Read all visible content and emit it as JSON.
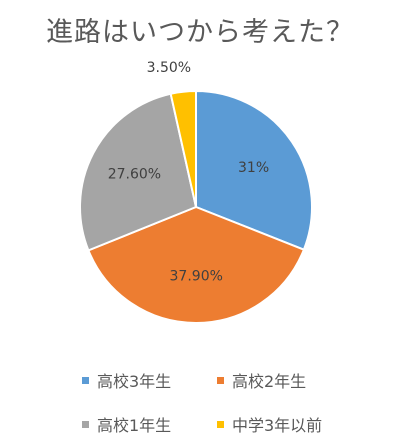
{
  "chart_data": {
    "type": "pie",
    "title": "進路はいつから考えた？",
    "slices": [
      {
        "name": "高校3年生",
        "value": 31.0,
        "label": "31%",
        "color": "#5B9BD5"
      },
      {
        "name": "高校2年生",
        "value": 37.9,
        "label": "37.90%",
        "color": "#ED7D31"
      },
      {
        "name": "高校1年生",
        "value": 27.6,
        "label": "27.60%",
        "color": "#A5A5A5"
      },
      {
        "name": "中学3年以前",
        "value": 3.5,
        "label": "3.50%",
        "color": "#FFC000"
      }
    ],
    "legend_position": "bottom"
  }
}
